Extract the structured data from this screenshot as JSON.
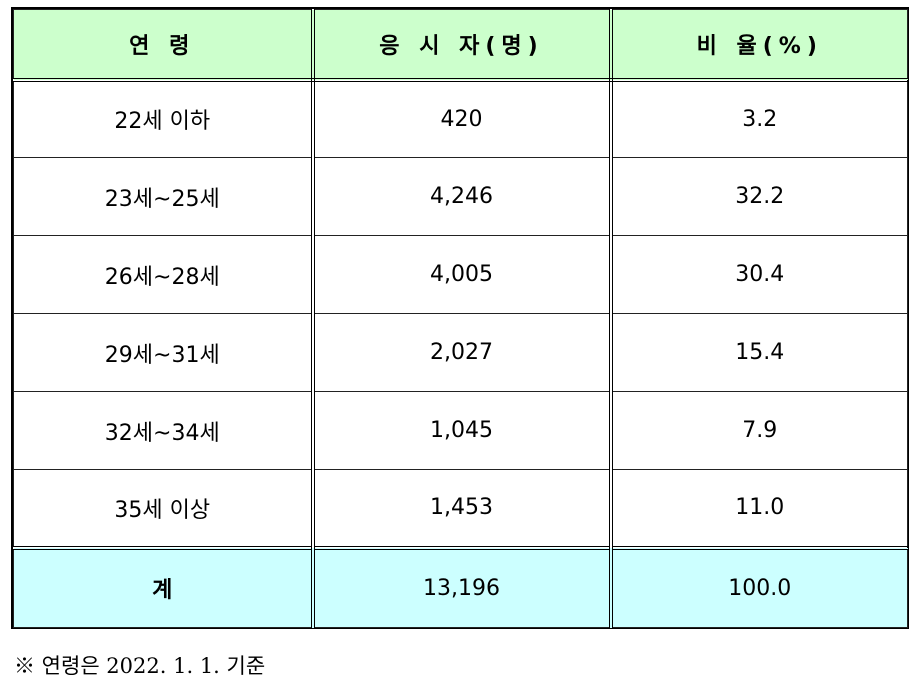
{
  "table": {
    "headers": [
      "연 령",
      "응 시 자(명)",
      "비 율(%)"
    ],
    "rows": [
      {
        "age": "22세 이하",
        "count": "420",
        "ratio": "3.2"
      },
      {
        "age": "23세~25세",
        "count": "4,246",
        "ratio": "32.2"
      },
      {
        "age": "26세~28세",
        "count": "4,005",
        "ratio": "30.4"
      },
      {
        "age": "29세~31세",
        "count": "2,027",
        "ratio": "15.4"
      },
      {
        "age": "32세~34세",
        "count": "1,045",
        "ratio": "7.9"
      },
      {
        "age": "35세 이상",
        "count": "1,453",
        "ratio": "11.0"
      }
    ],
    "total": {
      "label": "계",
      "count": "13,196",
      "ratio": "100.0"
    },
    "header_color": "#ccffcc",
    "total_color": "#ccffff"
  },
  "footnote": "※ 연령은 2022. 1. 1. 기준"
}
